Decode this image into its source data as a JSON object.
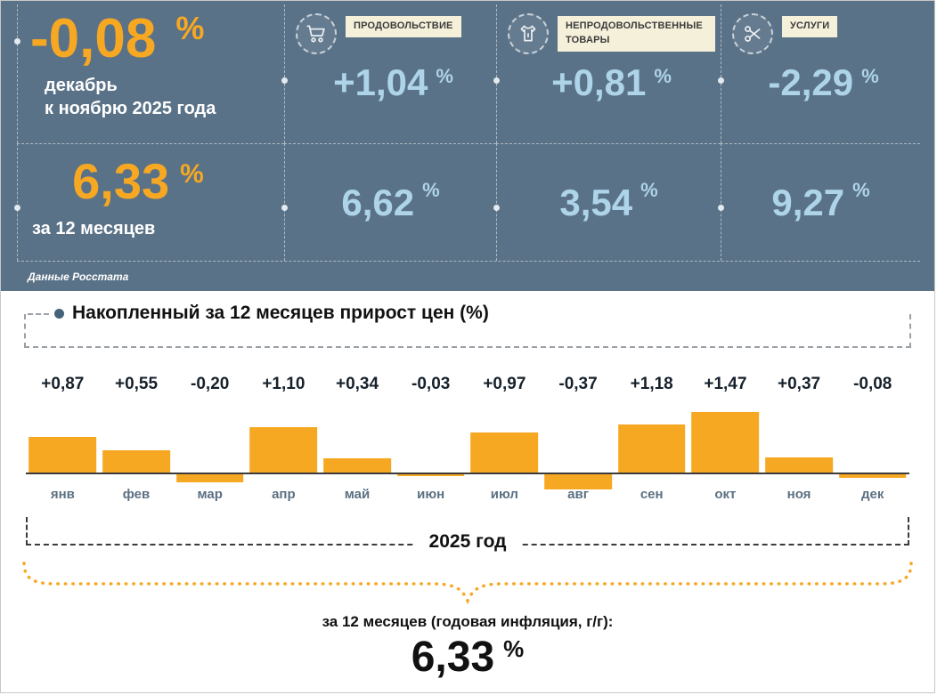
{
  "colors": {
    "panel_bg": "#5a7287",
    "orange": "#f7a823",
    "light_blue": "#aed4ea",
    "cream_label_bg": "#f5f0da"
  },
  "panel": {
    "main": {
      "value": "-0,08",
      "percent": "%",
      "label_line1": "декабрь",
      "label_line2": "к ноябрю 2025 года"
    },
    "yearly": {
      "value": "6,33",
      "percent": "%",
      "label": "за 12 месяцев"
    },
    "source": "Данные Росстата",
    "categories": [
      {
        "label": "ПРОДОВОЛЬСТВИЕ",
        "icon": "cart-icon",
        "monthly": "+1,04",
        "yearly": "6,62",
        "percent": "%"
      },
      {
        "label": "НЕПРОДОВОЛЬСТВЕННЫЕ ТОВАРЫ",
        "icon": "clothes-icon",
        "monthly": "+0,81",
        "yearly": "3,54",
        "percent": "%"
      },
      {
        "label": "УСЛУГИ",
        "icon": "scissors-icon",
        "monthly": "-2,29",
        "yearly": "9,27",
        "percent": "%"
      }
    ]
  },
  "chart_section": {
    "title": "Накопленный за 12 месяцев прирост цен (%)",
    "year_label": "2025 год",
    "footer_label": "за 12 месяцев (годовая инфляция, г/г):",
    "footer_value": "6,33",
    "footer_percent": "%"
  },
  "chart_data": {
    "type": "bar",
    "title": "Накопленный за 12 месяцев прирост цен (%)",
    "categories": [
      "янв",
      "фев",
      "мар",
      "апр",
      "май",
      "июн",
      "июл",
      "авг",
      "сен",
      "окт",
      "ноя",
      "дек"
    ],
    "values": [
      0.87,
      0.55,
      -0.2,
      1.1,
      0.34,
      -0.03,
      0.97,
      -0.37,
      1.18,
      1.47,
      0.37,
      -0.08
    ],
    "value_labels": [
      "+0,87",
      "+0,55",
      "-0,20",
      "+1,10",
      "+0,34",
      "-0,03",
      "+0,97",
      "-0,37",
      "+1,18",
      "+1,47",
      "+0,37",
      "-0,08"
    ],
    "bar_color": "#f7a823",
    "xlabel": "",
    "ylabel": "",
    "ylim": [
      -0.5,
      1.6
    ],
    "grid": false,
    "legend_position": "none"
  }
}
